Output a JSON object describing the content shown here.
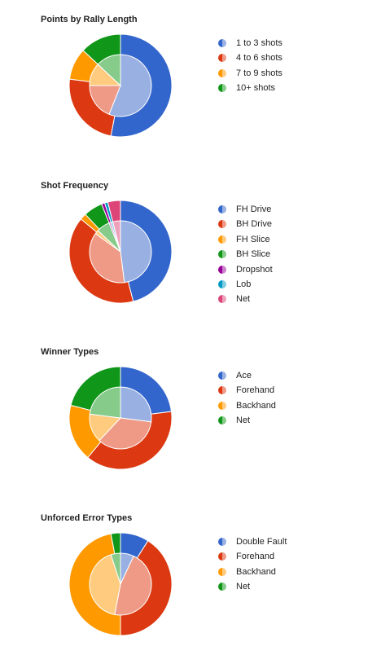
{
  "chart_data": [
    {
      "type": "pie",
      "title": "Points by Rally Length",
      "outer": {
        "categories": [
          "1 to 3 shots",
          "4 to 6 shots",
          "7 to 9 shots",
          "10+ shots"
        ],
        "values": [
          53,
          24,
          10,
          13
        ]
      },
      "inner": {
        "categories": [
          "1 to 3 shots",
          "4 to 6 shots",
          "7 to 9 shots",
          "10+ shots"
        ],
        "values": [
          56,
          19,
          12,
          13
        ]
      },
      "legend": [
        {
          "label": "1 to 3 shots",
          "color": "#3366cc",
          "light": "#99b0e3"
        },
        {
          "label": "4 to 6 shots",
          "color": "#dc3912",
          "light": "#ee9a86"
        },
        {
          "label": "7 to 9 shots",
          "color": "#ff9900",
          "light": "#ffcb7e"
        },
        {
          "label": "10+ shots",
          "color": "#109618",
          "light": "#86cb8a"
        }
      ],
      "legend_position": "right"
    },
    {
      "type": "pie",
      "title": "Shot Frequency",
      "outer": {
        "categories": [
          "FH Drive",
          "BH Drive",
          "FH Slice",
          "BH Slice",
          "Dropshot",
          "Lob",
          "Net"
        ],
        "values": [
          46,
          40,
          2,
          6,
          1,
          1,
          4
        ]
      },
      "inner": {
        "categories": [
          "FH Drive",
          "BH Drive",
          "FH Slice",
          "BH Slice",
          "Dropshot",
          "Lob",
          "Net"
        ],
        "values": [
          48,
          37,
          2,
          7,
          1,
          1,
          4
        ]
      },
      "legend": [
        {
          "label": "FH Drive",
          "color": "#3366cc",
          "light": "#99b0e3"
        },
        {
          "label": "BH Drive",
          "color": "#dc3912",
          "light": "#ee9a86"
        },
        {
          "label": "FH Slice",
          "color": "#ff9900",
          "light": "#ffcb7e"
        },
        {
          "label": "BH Slice",
          "color": "#109618",
          "light": "#86cb8a"
        },
        {
          "label": "Dropshot",
          "color": "#990099",
          "light": "#cc7fcc"
        },
        {
          "label": "Lob",
          "color": "#0099c6",
          "light": "#7fcce2"
        },
        {
          "label": "Net",
          "color": "#dd4477",
          "light": "#eea1bb"
        }
      ],
      "legend_position": "right"
    },
    {
      "type": "pie",
      "title": "Winner Types",
      "outer": {
        "categories": [
          "Ace",
          "Forehand",
          "Backhand",
          "Net"
        ],
        "values": [
          23,
          38,
          18,
          21
        ]
      },
      "inner": {
        "categories": [
          "Ace",
          "Forehand",
          "Backhand",
          "Net"
        ],
        "values": [
          27,
          35,
          15,
          23
        ]
      },
      "legend": [
        {
          "label": "Ace",
          "color": "#3366cc",
          "light": "#99b0e3"
        },
        {
          "label": "Forehand",
          "color": "#dc3912",
          "light": "#ee9a86"
        },
        {
          "label": "Backhand",
          "color": "#ff9900",
          "light": "#ffcb7e"
        },
        {
          "label": "Net",
          "color": "#109618",
          "light": "#86cb8a"
        }
      ],
      "legend_position": "right"
    },
    {
      "type": "pie",
      "title": "Unforced Error Types",
      "outer": {
        "categories": [
          "Double Fault",
          "Forehand",
          "Backhand",
          "Net"
        ],
        "values": [
          9,
          41,
          47,
          3
        ]
      },
      "inner": {
        "categories": [
          "Double Fault",
          "Forehand",
          "Backhand",
          "Net"
        ],
        "values": [
          7,
          46,
          42,
          5
        ]
      },
      "legend": [
        {
          "label": "Double Fault",
          "color": "#3366cc",
          "light": "#99b0e3"
        },
        {
          "label": "Forehand",
          "color": "#dc3912",
          "light": "#ee9a86"
        },
        {
          "label": "Backhand",
          "color": "#ff9900",
          "light": "#ffcb7e"
        },
        {
          "label": "Net",
          "color": "#109618",
          "light": "#86cb8a"
        }
      ],
      "legend_position": "right"
    }
  ]
}
